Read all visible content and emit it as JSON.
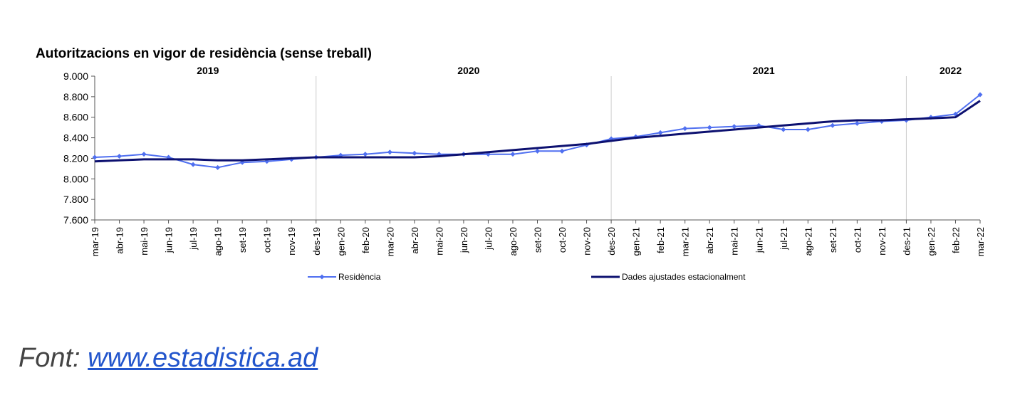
{
  "chart_data": {
    "type": "line",
    "title": "Autoritzacions en vigor de residència (sense treball)",
    "year_labels": [
      "2019",
      "2020",
      "2021",
      "2022"
    ],
    "categories": [
      "mar-19",
      "abr-19",
      "mai-19",
      "jun-19",
      "jul-19",
      "ago-19",
      "set-19",
      "oct-19",
      "nov-19",
      "des-19",
      "gen-20",
      "feb-20",
      "mar-20",
      "abr-20",
      "mai-20",
      "jun-20",
      "jul-20",
      "ago-20",
      "set-20",
      "oct-20",
      "nov-20",
      "des-20",
      "gen-21",
      "feb-21",
      "mar-21",
      "abr-21",
      "mai-21",
      "jun-21",
      "jul-21",
      "ago-21",
      "set-21",
      "oct-21",
      "nov-21",
      "des-21",
      "gen-22",
      "feb-22",
      "mar-22"
    ],
    "series": [
      {
        "name": "Residència",
        "color": "#4f6ff0",
        "markers": true,
        "values": [
          8210,
          8220,
          8240,
          8210,
          8140,
          8110,
          8160,
          8170,
          8190,
          8210,
          8230,
          8240,
          8260,
          8250,
          8240,
          8240,
          8240,
          8240,
          8270,
          8270,
          8330,
          8390,
          8410,
          8450,
          8490,
          8500,
          8510,
          8520,
          8480,
          8480,
          8520,
          8540,
          8560,
          8570,
          8600,
          8630,
          8820
        ]
      },
      {
        "name": "Dades ajustades estacionalment",
        "color": "#0d1170",
        "markers": false,
        "values": [
          8170,
          8180,
          8190,
          8190,
          8190,
          8180,
          8180,
          8190,
          8200,
          8210,
          8210,
          8210,
          8210,
          8210,
          8220,
          8240,
          8260,
          8280,
          8300,
          8320,
          8340,
          8370,
          8400,
          8420,
          8440,
          8460,
          8480,
          8500,
          8520,
          8540,
          8560,
          8570,
          8570,
          8580,
          8590,
          8600,
          8760
        ]
      }
    ],
    "ylim": [
      7600,
      9000
    ],
    "yticks": [
      {
        "value": 7600,
        "label": "7.600"
      },
      {
        "value": 7800,
        "label": "7.800"
      },
      {
        "value": 8000,
        "label": "8.000"
      },
      {
        "value": 8200,
        "label": "8.200"
      },
      {
        "value": 8400,
        "label": "8.400"
      },
      {
        "value": 8600,
        "label": "8.600"
      },
      {
        "value": 8800,
        "label": "8.800"
      },
      {
        "value": 9000,
        "label": "9.000"
      }
    ],
    "legend": "bottom"
  },
  "footer": {
    "prefix": "Font:",
    "link": "www.estadistica.ad"
  }
}
